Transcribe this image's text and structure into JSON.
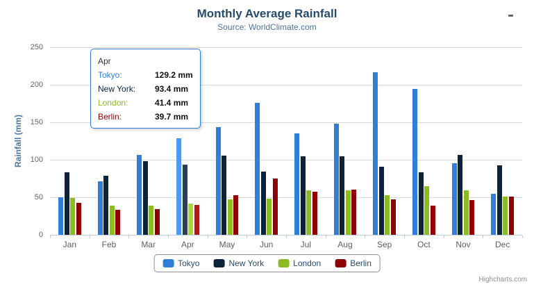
{
  "chart_data": {
    "type": "bar",
    "title": "Monthly Average Rainfall",
    "subtitle": "Source: WorldClimate.com",
    "ylabel": "Rainfall (mm)",
    "xlabel": "",
    "ylim": [
      0,
      250
    ],
    "yticks": [
      0,
      50,
      100,
      150,
      200,
      250
    ],
    "grid": true,
    "legend_position": "bottom",
    "categories": [
      "Jan",
      "Feb",
      "Mar",
      "Apr",
      "May",
      "Jun",
      "Jul",
      "Aug",
      "Sep",
      "Oct",
      "Nov",
      "Dec"
    ],
    "series": [
      {
        "name": "Tokyo",
        "color": "#2f7ed8",
        "values": [
          49.9,
          71.5,
          106.4,
          129.2,
          144.0,
          176.0,
          135.6,
          148.5,
          216.4,
          194.1,
          95.6,
          54.4
        ]
      },
      {
        "name": "New York",
        "color": "#0d233a",
        "values": [
          83.6,
          78.8,
          98.5,
          93.4,
          106.0,
          84.5,
          105.0,
          104.3,
          91.2,
          83.5,
          106.6,
          92.3
        ]
      },
      {
        "name": "London",
        "color": "#8bbc21",
        "values": [
          48.9,
          38.8,
          39.3,
          41.4,
          47.0,
          48.3,
          59.0,
          59.6,
          52.4,
          65.2,
          59.3,
          51.2
        ]
      },
      {
        "name": "Berlin",
        "color": "#910000",
        "values": [
          42.4,
          33.2,
          34.5,
          39.7,
          52.6,
          75.5,
          57.4,
          60.4,
          47.6,
          39.1,
          46.8,
          51.1
        ]
      }
    ]
  },
  "tooltip": {
    "category": "Apr",
    "border_color": "#2f7ed8",
    "rows": [
      {
        "label": "Tokyo:",
        "value": "129.2 mm",
        "color": "#2f7ed8"
      },
      {
        "label": "New York:",
        "value": "93.4 mm",
        "color": "#0d233a"
      },
      {
        "label": "London:",
        "value": "41.4 mm",
        "color": "#8bbc21"
      },
      {
        "label": "Berlin:",
        "value": "39.7 mm",
        "color": "#910000"
      }
    ]
  },
  "legend": {
    "items": [
      "Tokyo",
      "New York",
      "London",
      "Berlin"
    ]
  },
  "credits": {
    "label": "Highcharts.com"
  },
  "icons": {
    "menu": "hamburger-icon"
  },
  "colors": {
    "title": "#274b6d",
    "subtitle": "#4d759e",
    "axis_labels": "#666666",
    "grid_line": "#d8d8d8",
    "axis_line": "#c0d0e0",
    "legend_border": "#909090",
    "credits": "#909090"
  }
}
